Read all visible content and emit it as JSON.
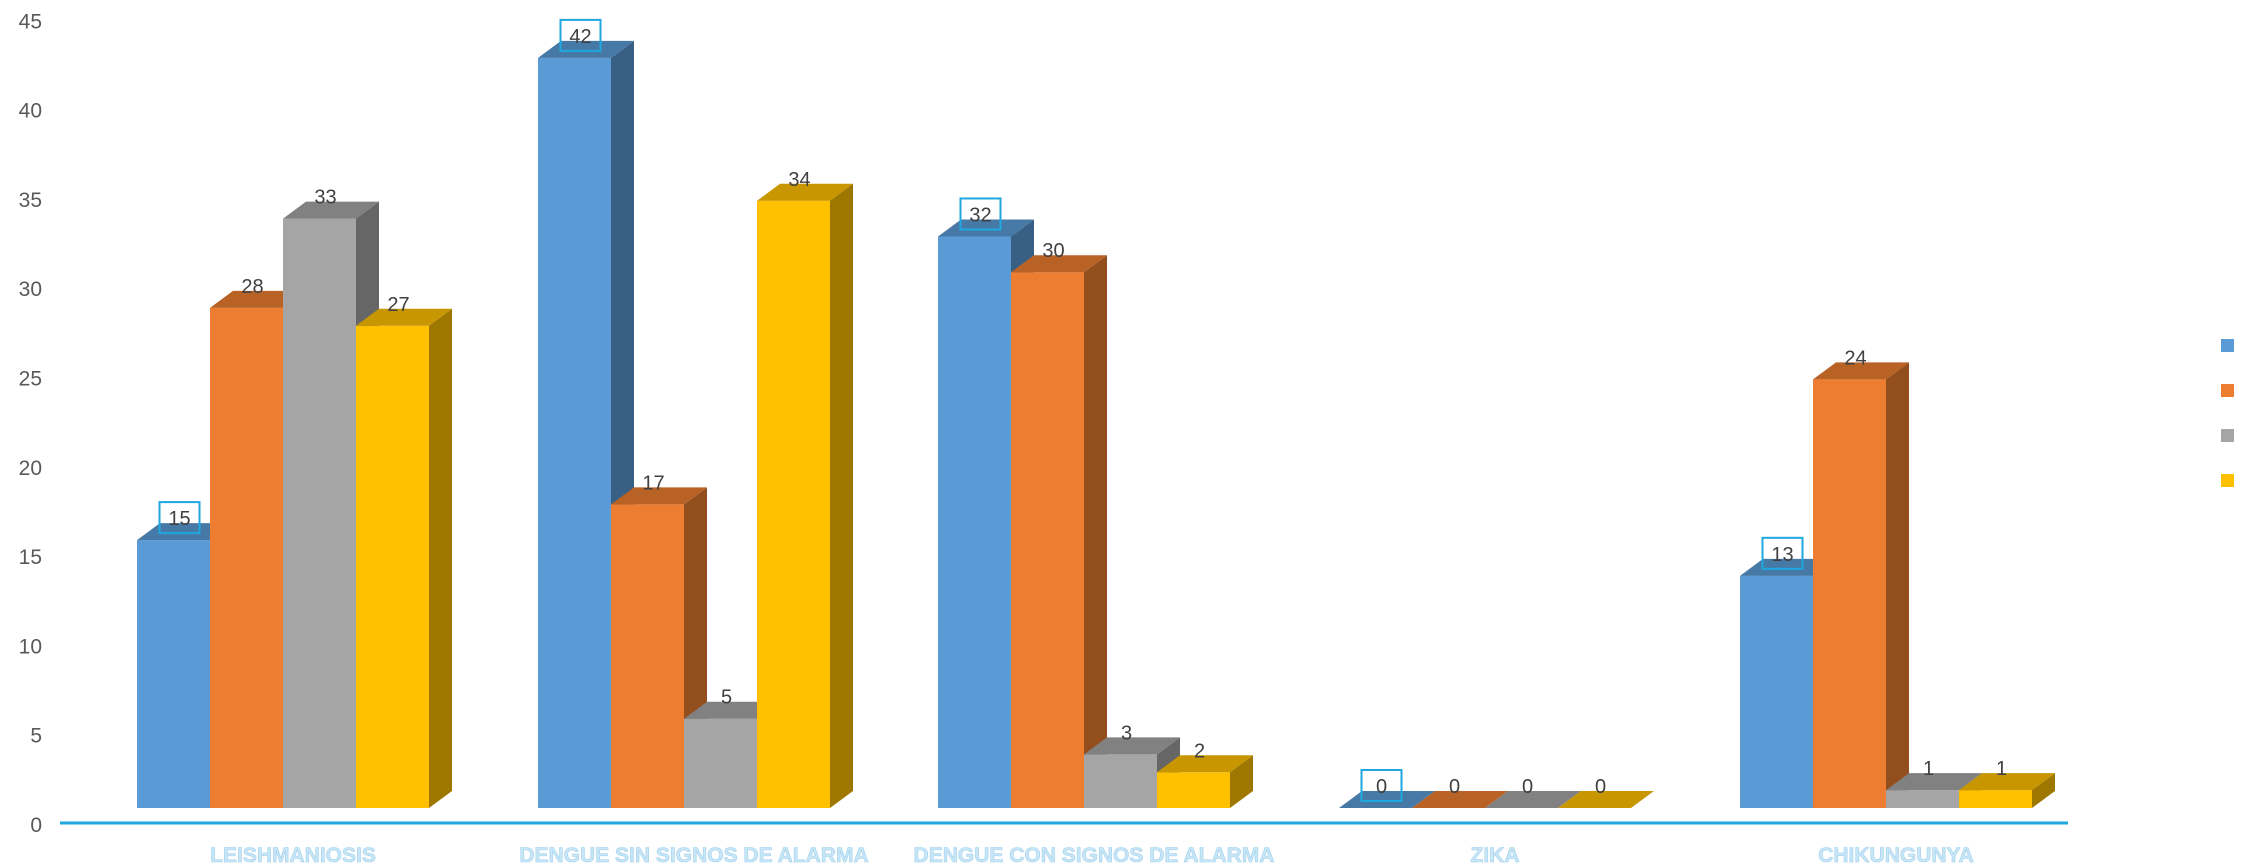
{
  "chart_data": {
    "type": "bar",
    "categories": [
      "LEISHMANIOSIS",
      "DENGUE SIN SIGNOS DE ALARMA",
      "DENGUE CON  SIGNOS DE ALARMA",
      "ZIKA",
      "CHIKUNGUNYA"
    ],
    "series": [
      {
        "color": "#5b9bd5",
        "values": [
          15,
          42,
          32,
          0,
          13
        ]
      },
      {
        "color": "#ed7d31",
        "values": [
          28,
          17,
          30,
          0,
          24
        ]
      },
      {
        "color": "#a5a5a5",
        "values": [
          33,
          5,
          3,
          0,
          1
        ]
      },
      {
        "color": "#ffc000",
        "values": [
          27,
          34,
          2,
          0,
          1
        ]
      }
    ],
    "y_ticks": [
      0,
      5,
      10,
      15,
      20,
      25,
      30,
      35,
      40,
      45
    ],
    "ylim": [
      0,
      45
    ],
    "boxed_labels_series": 0,
    "legend_position": "right",
    "grid": false,
    "style": "3d-clustered-column"
  }
}
